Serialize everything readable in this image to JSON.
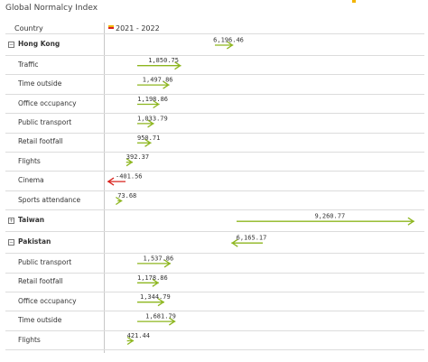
{
  "title": "Global Normalcy Index",
  "column_headers": {
    "country": "Country",
    "period": "2021 - 2022"
  },
  "colors": {
    "up": "#8db61e",
    "down": "#d9231e",
    "legend_a": "#f2b400",
    "legend_b": "#d9231e"
  },
  "icons": {
    "expanded": "⊟",
    "collapsed": "⊞"
  },
  "chart_data": {
    "type": "arrow",
    "title": "Global Normalcy Index",
    "period": "2021 - 2022",
    "rows": [
      {
        "label": "Hong Kong",
        "level": 0,
        "state": "expanded",
        "value": 6196.46,
        "value_label": "6,196.46"
      },
      {
        "label": "Traffic",
        "level": 1,
        "value": 1850.75,
        "value_label": "1,850.75"
      },
      {
        "label": "Time outside",
        "level": 1,
        "value": 1497.86,
        "value_label": "1,497.86"
      },
      {
        "label": "Office occupancy",
        "level": 1,
        "value": 1198.86,
        "value_label": "1,198.86"
      },
      {
        "label": "Public transport",
        "level": 1,
        "value": 1033.79,
        "value_label": "1,033.79"
      },
      {
        "label": "Retail footfall",
        "level": 1,
        "value": 950.71,
        "value_label": "950.71"
      },
      {
        "label": "Flights",
        "level": 1,
        "value": 392.37,
        "value_label": "392.37"
      },
      {
        "label": "Cinema",
        "level": 1,
        "value": -401.56,
        "value_label": "-401.56"
      },
      {
        "label": "Sports attendance",
        "level": 1,
        "value": 73.68,
        "value_label": "73.68"
      },
      {
        "label": "Taiwan",
        "level": 0,
        "state": "collapsed",
        "value": 9260.77,
        "value_label": "9,260.77"
      },
      {
        "label": "Pakistan",
        "level": 0,
        "state": "expanded",
        "value": 6165.17,
        "value_label": "6,165.17"
      },
      {
        "label": "Public transport",
        "level": 1,
        "value": 1537.86,
        "value_label": "1,537.86"
      },
      {
        "label": "Retail footfall",
        "level": 1,
        "value": 1178.86,
        "value_label": "1,178.86"
      },
      {
        "label": "Office occupancy",
        "level": 1,
        "value": 1344.79,
        "value_label": "1,344.79"
      },
      {
        "label": "Time outside",
        "level": 1,
        "value": 1681.79,
        "value_label": "1,681.79"
      },
      {
        "label": "Flights",
        "level": 1,
        "value": 421.44,
        "value_label": "421.44"
      }
    ]
  }
}
